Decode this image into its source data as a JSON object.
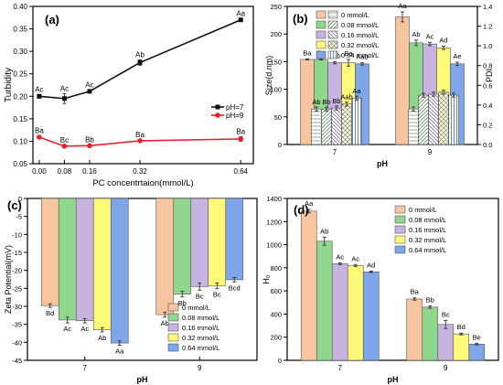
{
  "colors": {
    "ph7": "#111111",
    "ph9": "#e8202a",
    "series": [
      "#f7c59f",
      "#90d68c",
      "#c6b3e0",
      "#fff97a",
      "#7ea6e8"
    ],
    "bar_stroke": "#555555",
    "axis": "#000000"
  },
  "chart_data": [
    {
      "panel": "(a)",
      "type": "line",
      "xlabel": "PC concentrtaion(mmol/L)",
      "ylabel": "Turbidity",
      "x": [
        0.0,
        0.08,
        0.16,
        0.32,
        0.64
      ],
      "x_ticks": [
        "0.00",
        "0.08",
        "0.16",
        "0.32",
        "0.64"
      ],
      "ylim": [
        0.05,
        0.4
      ],
      "y_ticks": [
        "0.05",
        "0.10",
        "0.15",
        "0.20",
        "0.25",
        "0.30",
        "0.35",
        "0.40"
      ],
      "legend_position": "right",
      "series": [
        {
          "name": "pH=7",
          "values": [
            0.2,
            0.195,
            0.211,
            0.275,
            0.37
          ],
          "errors": [
            0.004,
            0.011,
            0.003,
            0.006,
            0.003
          ],
          "labels": [
            "Ac",
            "Ac",
            "Ac",
            "Ab",
            "Aa"
          ],
          "marker": "square"
        },
        {
          "name": "pH=9",
          "values": [
            0.109,
            0.089,
            0.09,
            0.101,
            0.105
          ],
          "errors": [
            0.003,
            0.002,
            0.002,
            0.002,
            0.005
          ],
          "labels": [
            "Ba",
            "Bc",
            "Bb",
            "Ba",
            "Ba"
          ],
          "marker": "circle"
        }
      ]
    },
    {
      "panel": "(b)",
      "type": "bar",
      "xlabel": "pH",
      "ylabel": "Size(d.nm)",
      "y2label": "PDI",
      "categories": [
        "7",
        "9"
      ],
      "ylim": [
        0,
        250
      ],
      "y_ticks": [
        "0",
        "50",
        "100",
        "150",
        "200",
        "250"
      ],
      "y2lim": [
        0,
        1.4
      ],
      "y2_ticks": [
        "0.0",
        "0.2",
        "0.4",
        "0.6",
        "0.8",
        "1.0",
        "1.2",
        "1.4"
      ],
      "legend_position": "top",
      "series": [
        {
          "name": "0 mmol/L",
          "values": [
            154,
            231
          ],
          "errors": [
            1,
            9
          ],
          "labels": [
            "Ba",
            "Aa"
          ],
          "pdi": [
            0.36,
            0.36
          ],
          "pdi_labels": [
            "Ab",
            ""
          ]
        },
        {
          "name": "0.08 mmol/L",
          "values": [
            154,
            184
          ],
          "errors": [
            1,
            5
          ],
          "labels": [
            "Ba",
            "Ab"
          ],
          "pdi": [
            0.36,
            0.5
          ],
          "pdi_labels": [
            "Bb",
            ""
          ]
        },
        {
          "name": "0.16 mmol/L",
          "values": [
            148,
            182
          ],
          "errors": [
            2,
            3
          ],
          "labels": [
            "Bab",
            "Ac"
          ],
          "pdi": [
            0.37,
            0.51
          ],
          "pdi_labels": [
            "Bb",
            ""
          ]
        },
        {
          "name": "0.32 mmol/L",
          "values": [
            148,
            175
          ],
          "errors": [
            6,
            3
          ],
          "labels": [
            "Ba",
            "Ad"
          ],
          "pdi": [
            0.41,
            0.53
          ],
          "pdi_labels": [
            "Aab",
            ""
          ]
        },
        {
          "name": "0.64 mmol/L",
          "values": [
            146,
            146
          ],
          "errors": [
            2,
            3
          ],
          "labels": [
            "Aab",
            "Ae"
          ],
          "pdi": [
            0.47,
            0.5
          ],
          "pdi_labels": [
            "Aa",
            ""
          ]
        }
      ]
    },
    {
      "panel": "(c)",
      "type": "bar",
      "xlabel": "pH",
      "ylabel": "Zeta Potential(mV)",
      "categories": [
        "7",
        "9"
      ],
      "ylim": [
        -45,
        0
      ],
      "y_ticks": [
        "0",
        "-5",
        "-10",
        "-15",
        "-20",
        "-25",
        "-30",
        "-35",
        "-40",
        "-45"
      ],
      "legend_position": "bottom-right",
      "series": [
        {
          "name": "0 mmol/L",
          "values": [
            -29.8,
            -32.3
          ],
          "errors": [
            0.5,
            0.7
          ],
          "labels": [
            "Bd",
            "Ab"
          ]
        },
        {
          "name": "0.08 mmol/L",
          "values": [
            -33.8,
            -26.6
          ],
          "errors": [
            0.8,
            0.8
          ],
          "labels": [
            "Ac",
            "Bb"
          ]
        },
        {
          "name": "0.16 mmol/L",
          "values": [
            -34.0,
            -24.5
          ],
          "errors": [
            0.6,
            1.0
          ],
          "labels": [
            "Ac",
            "Bc"
          ]
        },
        {
          "name": "0.32 mmol/L",
          "values": [
            -36.5,
            -24.3
          ],
          "errors": [
            0.6,
            0.8
          ],
          "labels": [
            "Ab",
            "Bc"
          ]
        },
        {
          "name": "0.64 mmol/L",
          "values": [
            -40.2,
            -22.6
          ],
          "errors": [
            0.6,
            0.6
          ],
          "labels": [
            "Aa",
            "Bcd"
          ]
        }
      ]
    },
    {
      "panel": "(d)",
      "type": "bar",
      "xlabel": "pH",
      "ylabel": "H₀",
      "categories": [
        "7",
        "9"
      ],
      "ylim": [
        0,
        1400
      ],
      "y_ticks": [
        "0",
        "200",
        "400",
        "600",
        "800",
        "1000",
        "1200",
        "1400"
      ],
      "legend_position": "top-right",
      "series": [
        {
          "name": "0 mmol/L",
          "values": [
            1290,
            530
          ],
          "errors": [
            15,
            10
          ],
          "labels": [
            "Aa",
            "Ba"
          ]
        },
        {
          "name": "0.08 mmol/L",
          "values": [
            1030,
            460
          ],
          "errors": [
            35,
            10
          ],
          "labels": [
            "Ab",
            "Bb"
          ]
        },
        {
          "name": "0.16 mmol/L",
          "values": [
            835,
            310
          ],
          "errors": [
            8,
            35
          ],
          "labels": [
            "Ac",
            "Bc"
          ]
        },
        {
          "name": "0.32 mmol/L",
          "values": [
            820,
            228
          ],
          "errors": [
            8,
            8
          ],
          "labels": [
            "Ac",
            "Bd"
          ]
        },
        {
          "name": "0.64 mmol/L",
          "values": [
            765,
            140
          ],
          "errors": [
            6,
            8
          ],
          "labels": [
            "Ad",
            "Be"
          ]
        }
      ]
    }
  ]
}
